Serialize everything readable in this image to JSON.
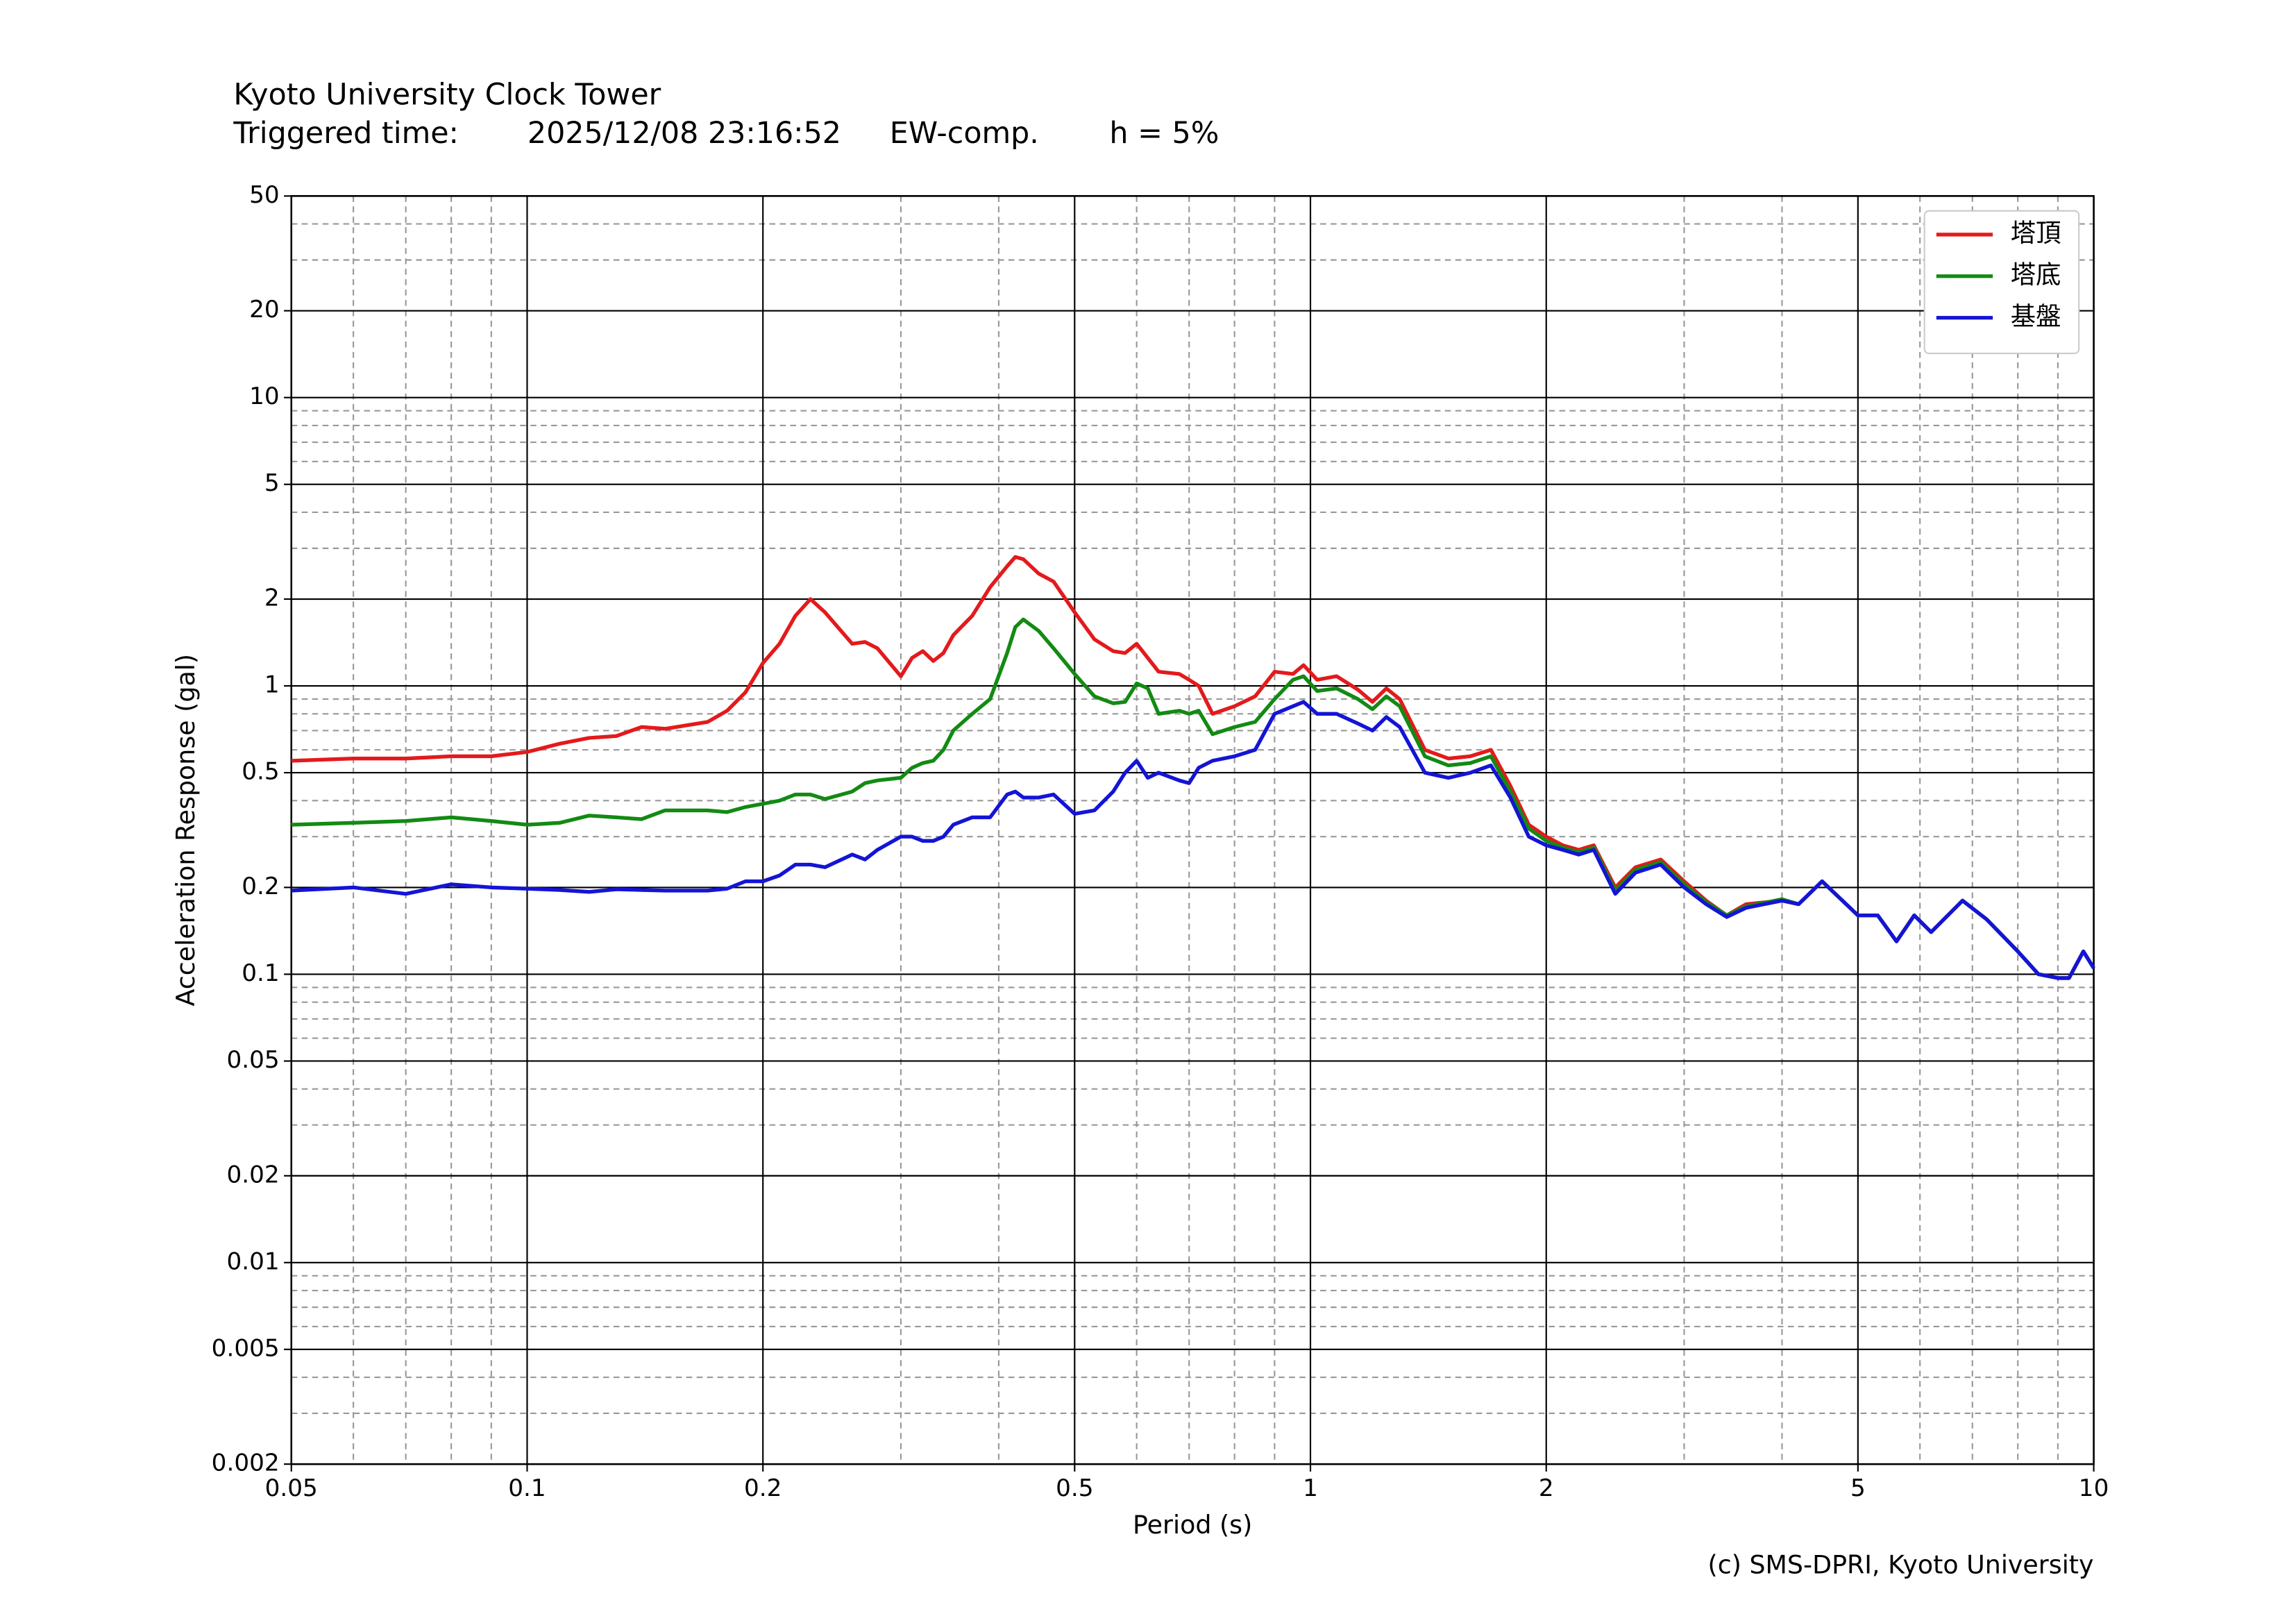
{
  "chart_data": {
    "type": "line",
    "title": "Kyoto University Clock Tower",
    "trigger_label": "Triggered time:",
    "trigger_time": "2025/12/08 23:16:52",
    "component": "EW-comp.",
    "damping": "h = 5%",
    "x_label": "Period (s)",
    "y_label": "Acceleration Response (gal)",
    "credit": "(c) SMS-DPRI, Kyoto University",
    "xscale": "log",
    "yscale": "log",
    "grid": true,
    "legend": "upper right",
    "xlim": [
      0.05,
      10
    ],
    "ylim": [
      0.002,
      50
    ],
    "xticks": [
      0.05,
      0.1,
      0.2,
      0.5,
      1,
      2,
      5,
      10
    ],
    "yticks": [
      0.002,
      0.005,
      0.01,
      0.02,
      0.05,
      0.1,
      0.2,
      0.5,
      1,
      2,
      5,
      10,
      20,
      50
    ],
    "xminorticks": [
      0.06,
      0.07,
      0.08,
      0.09,
      0.3,
      0.4,
      0.6,
      0.7,
      0.8,
      0.9,
      3,
      4,
      6,
      7,
      8,
      9
    ],
    "yminorticks": [
      0.003,
      0.004,
      0.006,
      0.007,
      0.008,
      0.009,
      0.03,
      0.04,
      0.06,
      0.07,
      0.08,
      0.09,
      0.3,
      0.4,
      0.6,
      0.7,
      0.8,
      0.9,
      3,
      4,
      6,
      7,
      8,
      9,
      30,
      40
    ],
    "x": [
      0.05,
      0.06,
      0.07,
      0.08,
      0.09,
      0.1,
      0.11,
      0.12,
      0.13,
      0.14,
      0.15,
      0.17,
      0.18,
      0.19,
      0.2,
      0.21,
      0.22,
      0.23,
      0.24,
      0.26,
      0.27,
      0.28,
      0.3,
      0.31,
      0.32,
      0.33,
      0.34,
      0.35,
      0.37,
      0.39,
      0.41,
      0.42,
      0.43,
      0.45,
      0.47,
      0.5,
      0.53,
      0.56,
      0.58,
      0.6,
      0.62,
      0.64,
      0.68,
      0.7,
      0.72,
      0.75,
      0.8,
      0.85,
      0.9,
      0.95,
      0.98,
      1.02,
      1.08,
      1.15,
      1.2,
      1.25,
      1.3,
      1.4,
      1.5,
      1.6,
      1.7,
      1.8,
      1.9,
      2.0,
      2.1,
      2.2,
      2.3,
      2.45,
      2.6,
      2.8,
      3.0,
      3.2,
      3.4,
      3.6,
      4.0,
      4.2,
      4.5,
      5.0,
      5.3,
      5.6,
      5.9,
      6.2,
      6.8,
      7.3,
      8.0,
      8.5,
      9.0,
      9.3,
      9.7,
      10
    ],
    "series": [
      {
        "name": "塔頂",
        "color": "#e31a1c",
        "values": [
          0.55,
          0.56,
          0.56,
          0.57,
          0.57,
          0.59,
          0.63,
          0.66,
          0.67,
          0.72,
          0.71,
          0.75,
          0.82,
          0.95,
          1.2,
          1.4,
          1.75,
          2.0,
          1.8,
          1.4,
          1.42,
          1.35,
          1.08,
          1.25,
          1.32,
          1.22,
          1.3,
          1.5,
          1.75,
          2.2,
          2.6,
          2.8,
          2.75,
          2.45,
          2.3,
          1.8,
          1.45,
          1.32,
          1.3,
          1.4,
          1.25,
          1.12,
          1.1,
          1.05,
          1.0,
          0.8,
          0.85,
          0.92,
          1.12,
          1.1,
          1.18,
          1.05,
          1.08,
          0.97,
          0.88,
          0.98,
          0.9,
          0.6,
          0.56,
          0.57,
          0.6,
          0.45,
          0.33,
          0.3,
          0.28,
          0.27,
          0.28,
          0.2,
          0.235,
          0.25,
          0.21,
          0.18,
          0.16,
          0.175,
          0.18,
          0.175,
          0.21,
          0.16,
          0.16,
          0.13,
          0.16,
          0.14,
          0.18,
          0.155,
          0.12,
          0.1,
          0.097,
          0.097,
          0.12,
          0.105
        ]
      },
      {
        "name": "塔底",
        "color": "#138a13",
        "values": [
          0.33,
          0.335,
          0.34,
          0.35,
          0.34,
          0.33,
          0.335,
          0.355,
          0.35,
          0.345,
          0.37,
          0.37,
          0.365,
          0.38,
          0.39,
          0.4,
          0.42,
          0.42,
          0.405,
          0.43,
          0.46,
          0.47,
          0.48,
          0.52,
          0.54,
          0.55,
          0.6,
          0.7,
          0.8,
          0.9,
          1.3,
          1.6,
          1.7,
          1.55,
          1.35,
          1.1,
          0.92,
          0.87,
          0.88,
          1.02,
          0.98,
          0.8,
          0.82,
          0.8,
          0.82,
          0.68,
          0.72,
          0.75,
          0.9,
          1.05,
          1.08,
          0.96,
          0.98,
          0.9,
          0.83,
          0.92,
          0.85,
          0.57,
          0.53,
          0.54,
          0.57,
          0.43,
          0.32,
          0.29,
          0.275,
          0.265,
          0.275,
          0.195,
          0.23,
          0.245,
          0.205,
          0.178,
          0.16,
          0.172,
          0.182,
          0.175,
          0.21,
          0.16,
          0.16,
          0.13,
          0.16,
          0.14,
          0.18,
          0.155,
          0.12,
          0.1,
          0.097,
          0.097,
          0.12,
          0.105
        ]
      },
      {
        "name": "基盤",
        "color": "#1414d6",
        "values": [
          0.195,
          0.2,
          0.19,
          0.205,
          0.2,
          0.198,
          0.196,
          0.193,
          0.197,
          0.196,
          0.195,
          0.195,
          0.198,
          0.21,
          0.21,
          0.22,
          0.24,
          0.24,
          0.235,
          0.26,
          0.25,
          0.27,
          0.3,
          0.3,
          0.29,
          0.29,
          0.3,
          0.33,
          0.35,
          0.35,
          0.42,
          0.43,
          0.41,
          0.41,
          0.42,
          0.36,
          0.37,
          0.43,
          0.5,
          0.55,
          0.48,
          0.5,
          0.47,
          0.46,
          0.52,
          0.55,
          0.57,
          0.6,
          0.8,
          0.85,
          0.88,
          0.8,
          0.8,
          0.74,
          0.7,
          0.78,
          0.72,
          0.5,
          0.48,
          0.5,
          0.53,
          0.41,
          0.3,
          0.28,
          0.27,
          0.26,
          0.27,
          0.19,
          0.225,
          0.24,
          0.2,
          0.175,
          0.158,
          0.17,
          0.18,
          0.175,
          0.21,
          0.16,
          0.16,
          0.13,
          0.16,
          0.14,
          0.18,
          0.155,
          0.12,
          0.1,
          0.097,
          0.097,
          0.12,
          0.105
        ]
      }
    ]
  }
}
